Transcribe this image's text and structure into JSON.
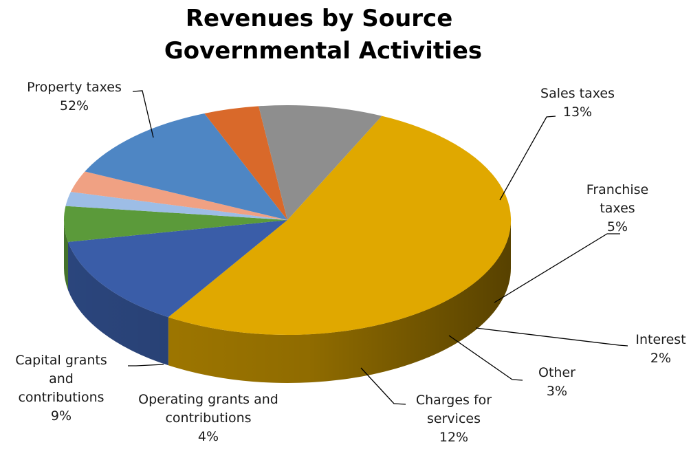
{
  "chart_data": {
    "type": "pie",
    "title": [
      "Revenues by Source",
      "Governmental Activities"
    ],
    "slices": [
      {
        "name": "Property taxes",
        "label_lines": [
          "Property taxes"
        ],
        "percent_label": "52%",
        "value": 52,
        "color": "#E0A800"
      },
      {
        "name": "Sales taxes",
        "label_lines": [
          "Sales taxes"
        ],
        "percent_label": "13%",
        "value": 13,
        "color": "#3A5DA8"
      },
      {
        "name": "Franchise taxes",
        "label_lines": [
          "Franchise",
          "taxes"
        ],
        "percent_label": "5%",
        "value": 5,
        "color": "#5B9A3A"
      },
      {
        "name": "Interest",
        "label_lines": [
          "Interest"
        ],
        "percent_label": "2%",
        "value": 2,
        "color": "#9DBDE6"
      },
      {
        "name": "Other",
        "label_lines": [
          "Other"
        ],
        "percent_label": "3%",
        "value": 3,
        "color": "#F0A183"
      },
      {
        "name": "Charges for services",
        "label_lines": [
          "Charges for",
          "services"
        ],
        "percent_label": "12%",
        "value": 12,
        "color": "#4E86C4"
      },
      {
        "name": "Operating grants and contributions",
        "label_lines": [
          "Operating grants and",
          "contributions"
        ],
        "percent_label": "4%",
        "value": 4,
        "color": "#D9692A"
      },
      {
        "name": "Capital grants and contributions",
        "label_lines": [
          "Capital grants",
          "and",
          "contributions"
        ],
        "percent_label": "9%",
        "value": 9,
        "color": "#8E8E8E"
      }
    ]
  }
}
